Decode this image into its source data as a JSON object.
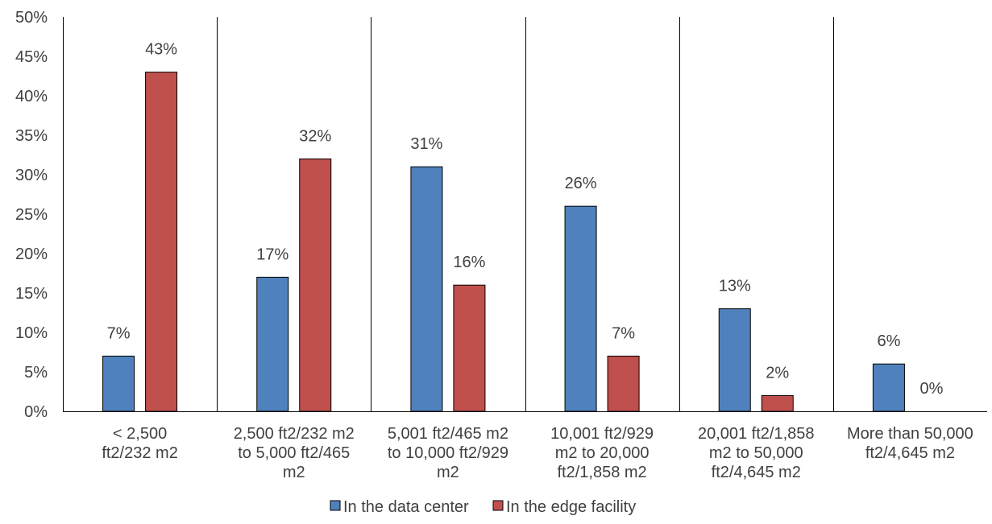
{
  "chart_data": {
    "type": "bar",
    "categories": [
      [
        "< 2,500",
        "ft2/232 m2"
      ],
      [
        "2,500 ft2/232 m2",
        "to 5,000 ft2/465",
        "m2"
      ],
      [
        "5,001 ft2/465 m2",
        "to 10,000 ft2/929",
        "m2"
      ],
      [
        "10,001 ft2/929",
        "m2 to 20,000",
        "ft2/1,858 m2"
      ],
      [
        "20,001 ft2/1,858",
        "m2 to 50,000",
        "ft2/4,645 m2"
      ],
      [
        "More than 50,000",
        "ft2/4,645 m2"
      ]
    ],
    "series": [
      {
        "name": "In the data center",
        "color": "#4F81BD",
        "values": [
          7,
          17,
          31,
          26,
          13,
          6
        ],
        "labels": [
          "7%",
          "17%",
          "31%",
          "26%",
          "13%",
          "6%"
        ]
      },
      {
        "name": "In the edge facility",
        "color": "#C0504D",
        "values": [
          43,
          32,
          16,
          7,
          2,
          0
        ],
        "labels": [
          "43%",
          "32%",
          "16%",
          "7%",
          "2%",
          "0%"
        ]
      }
    ],
    "ylim": [
      0,
      50
    ],
    "yticks": [
      0,
      5,
      10,
      15,
      20,
      25,
      30,
      35,
      40,
      45,
      50
    ],
    "ytick_labels": [
      "0%",
      "5%",
      "10%",
      "15%",
      "20%",
      "25%",
      "30%",
      "35%",
      "40%",
      "45%",
      "50%"
    ],
    "title": "",
    "xlabel": "",
    "ylabel": "",
    "grid": false,
    "category_separators": true,
    "legend_position": "bottom"
  }
}
